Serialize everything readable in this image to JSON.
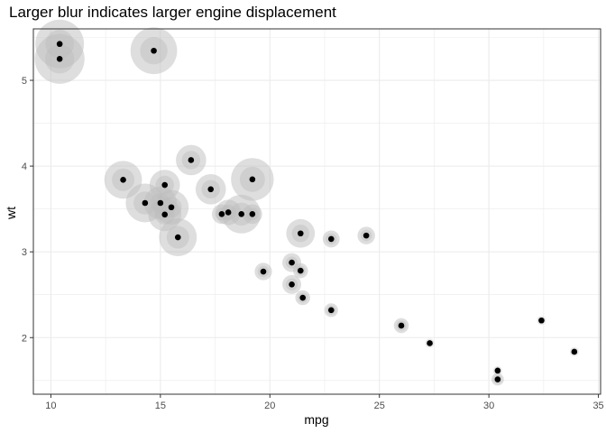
{
  "chart_data": {
    "type": "scatter",
    "title": "Larger blur indicates larger engine displacement",
    "xlabel": "mpg",
    "ylabel": "wt",
    "xlim": [
      9.2,
      35.1
    ],
    "ylim": [
      1.34,
      5.6
    ],
    "xticks": [
      10,
      15,
      20,
      25,
      30,
      35
    ],
    "yticks": [
      2,
      3,
      4,
      5
    ],
    "grid": true,
    "colors": {
      "point": "#000000",
      "blur": "#bdbdbd",
      "grid": "#ebebeb",
      "panel_border": "#333333"
    },
    "points": [
      {
        "x": 21.0,
        "y": 2.62,
        "disp": 160
      },
      {
        "x": 21.0,
        "y": 2.875,
        "disp": 160
      },
      {
        "x": 22.8,
        "y": 2.32,
        "disp": 108
      },
      {
        "x": 21.4,
        "y": 3.215,
        "disp": 258
      },
      {
        "x": 18.7,
        "y": 3.44,
        "disp": 360
      },
      {
        "x": 18.1,
        "y": 3.46,
        "disp": 225
      },
      {
        "x": 14.3,
        "y": 3.57,
        "disp": 360
      },
      {
        "x": 24.4,
        "y": 3.19,
        "disp": 146.7
      },
      {
        "x": 22.8,
        "y": 3.15,
        "disp": 140.8
      },
      {
        "x": 19.2,
        "y": 3.44,
        "disp": 167.6
      },
      {
        "x": 17.8,
        "y": 3.44,
        "disp": 167.6
      },
      {
        "x": 16.4,
        "y": 4.07,
        "disp": 275.8
      },
      {
        "x": 17.3,
        "y": 3.73,
        "disp": 275.8
      },
      {
        "x": 15.2,
        "y": 3.78,
        "disp": 275.8
      },
      {
        "x": 10.4,
        "y": 5.25,
        "disp": 472
      },
      {
        "x": 10.4,
        "y": 5.424,
        "disp": 460
      },
      {
        "x": 14.7,
        "y": 5.345,
        "disp": 440
      },
      {
        "x": 32.4,
        "y": 2.2,
        "disp": 78.7
      },
      {
        "x": 30.4,
        "y": 1.615,
        "disp": 75.7
      },
      {
        "x": 33.9,
        "y": 1.835,
        "disp": 71.1
      },
      {
        "x": 21.5,
        "y": 2.465,
        "disp": 120.1
      },
      {
        "x": 15.5,
        "y": 3.52,
        "disp": 318
      },
      {
        "x": 15.2,
        "y": 3.435,
        "disp": 304
      },
      {
        "x": 13.3,
        "y": 3.84,
        "disp": 350
      },
      {
        "x": 19.2,
        "y": 3.845,
        "disp": 400
      },
      {
        "x": 27.3,
        "y": 1.935,
        "disp": 79
      },
      {
        "x": 26.0,
        "y": 2.14,
        "disp": 120.3
      },
      {
        "x": 30.4,
        "y": 1.513,
        "disp": 95.1
      },
      {
        "x": 15.8,
        "y": 3.17,
        "disp": 351
      },
      {
        "x": 19.7,
        "y": 2.77,
        "disp": 145
      },
      {
        "x": 15.0,
        "y": 3.57,
        "disp": 301
      },
      {
        "x": 21.4,
        "y": 2.78,
        "disp": 121
      }
    ]
  }
}
